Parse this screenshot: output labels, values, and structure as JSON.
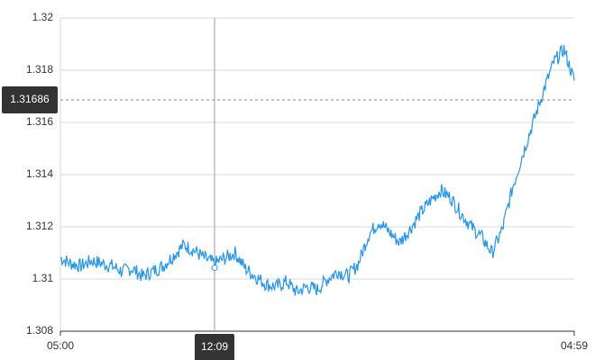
{
  "chart_data": {
    "type": "line",
    "x_ticks": [
      "05:00",
      "04:59"
    ],
    "y_ticks": [
      "1.308",
      "1.31",
      "1.312",
      "1.314",
      "1.316",
      "1.318",
      "1.32"
    ],
    "ylim": [
      1.308,
      1.32
    ],
    "grid": true,
    "series": [
      {
        "color": "#2196f3",
        "x": [
          0,
          2,
          4,
          6,
          8,
          10,
          12,
          14,
          16,
          18,
          20,
          22,
          24,
          26,
          28,
          30,
          32,
          34,
          36,
          38,
          40,
          42,
          44,
          46,
          48,
          50,
          52,
          54,
          56,
          58,
          60,
          62,
          64,
          66,
          68,
          70,
          72,
          74,
          76,
          78,
          80,
          82,
          84,
          86,
          88,
          90,
          92,
          94,
          96,
          98,
          100
        ],
        "y": [
          1.3108,
          1.3106,
          1.3105,
          1.3107,
          1.3106,
          1.3105,
          1.3103,
          1.3104,
          1.3101,
          1.3103,
          1.3105,
          1.3109,
          1.3113,
          1.3111,
          1.3108,
          1.3106,
          1.3108,
          1.311,
          1.3104,
          1.3101,
          1.3098,
          1.3097,
          1.3099,
          1.3095,
          1.3097,
          1.3096,
          1.31,
          1.3103,
          1.3101,
          1.3106,
          1.3117,
          1.3122,
          1.3118,
          1.3114,
          1.3119,
          1.3125,
          1.313,
          1.3134,
          1.3131,
          1.3125,
          1.312,
          1.3116,
          1.311,
          1.3119,
          1.3135,
          1.3148,
          1.316,
          1.3172,
          1.3183,
          1.3188,
          1.3176
        ]
      }
    ],
    "crosshair": {
      "x_label": "12:09",
      "y_label": "1.31686",
      "y_value": 1.31686,
      "x_value": 30
    }
  }
}
